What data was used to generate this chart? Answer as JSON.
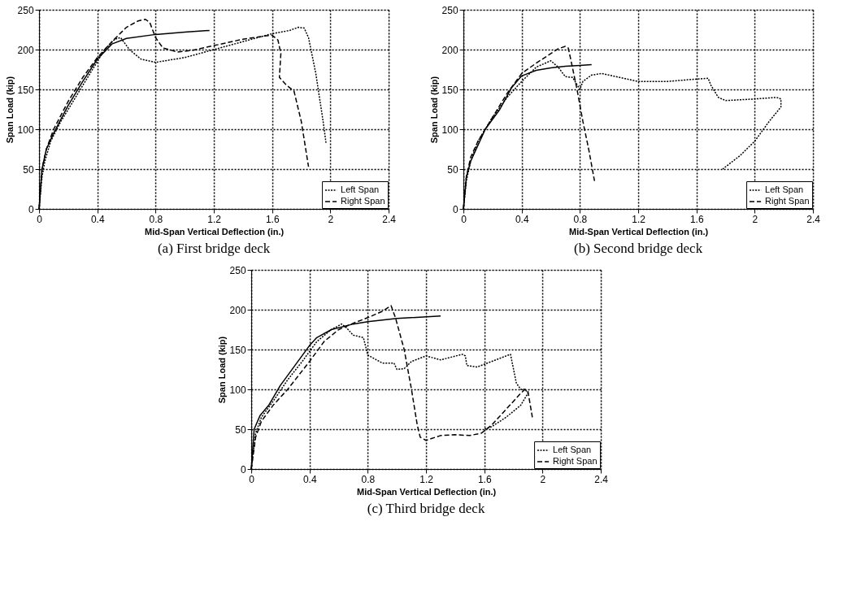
{
  "chart_data": [
    {
      "type": "line",
      "title": "(a) First bridge deck",
      "xlabel": "Mid-Span Vertical Deflection (in.)",
      "ylabel": "Span Load (kip)",
      "xlim": [
        0,
        2.4
      ],
      "ylim": [
        0,
        250
      ],
      "xticks": [
        0,
        0.4,
        0.8,
        1.2,
        1.6,
        2,
        2.4
      ],
      "yticks": [
        0,
        50,
        100,
        150,
        200,
        250
      ],
      "grid": true,
      "legend": "bottom right",
      "marker": "none",
      "series": [
        {
          "name": "Left Span",
          "color": "#000000",
          "line_style": "dotted",
          "x": [
            0,
            0.02,
            0.04,
            0.08,
            0.15,
            0.25,
            0.35,
            0.45,
            0.52,
            0.56,
            0.62,
            0.7,
            0.8,
            1.0,
            1.2,
            1.4,
            1.6,
            1.72,
            1.78,
            1.82,
            1.85,
            1.9,
            1.95,
            1.97
          ],
          "values": [
            0,
            40,
            60,
            85,
            110,
            140,
            170,
            200,
            213,
            215,
            200,
            188,
            184,
            190,
            200,
            210,
            220,
            224,
            228,
            227,
            215,
            170,
            110,
            83
          ]
        },
        {
          "name": "Right Span",
          "color": "#000000",
          "line_style": "dashed",
          "x": [
            0,
            0.02,
            0.05,
            0.1,
            0.2,
            0.3,
            0.4,
            0.5,
            0.6,
            0.68,
            0.73,
            0.76,
            0.8,
            0.85,
            0.95,
            1.05,
            1.2,
            1.4,
            1.55,
            1.6,
            1.64,
            1.66,
            1.65,
            1.7,
            1.75,
            1.8,
            1.85
          ],
          "values": [
            0,
            50,
            75,
            100,
            135,
            165,
            190,
            210,
            228,
            236,
            238,
            234,
            215,
            202,
            197,
            199,
            205,
            213,
            217,
            218,
            212,
            195,
            165,
            155,
            148,
            110,
            53
          ]
        },
        {
          "color": "#000000",
          "line_style": "solid",
          "x": [
            0,
            0.02,
            0.05,
            0.1,
            0.2,
            0.3,
            0.4,
            0.5,
            0.6,
            0.8,
            1.0,
            1.17
          ],
          "values": [
            0,
            50,
            75,
            95,
            130,
            160,
            188,
            207,
            214,
            219,
            222,
            224
          ]
        }
      ]
    },
    {
      "type": "line",
      "title": "(b) Second bridge deck",
      "xlabel": "Mid-Span Vertical Deflection (in.)",
      "ylabel": "Span Load (kip)",
      "xlim": [
        0,
        2.4
      ],
      "ylim": [
        0,
        250
      ],
      "xticks": [
        0,
        0.4,
        0.8,
        1.2,
        1.6,
        2,
        2.4
      ],
      "yticks": [
        0,
        50,
        100,
        150,
        200,
        250
      ],
      "grid": true,
      "legend": "bottom right",
      "marker": "none",
      "series": [
        {
          "name": "Left Span",
          "color": "#000000",
          "line_style": "dotted",
          "x": [
            0,
            0.02,
            0.05,
            0.1,
            0.2,
            0.3,
            0.4,
            0.5,
            0.6,
            0.65,
            0.7,
            0.75,
            0.8,
            0.82,
            0.88,
            0.95,
            1.1,
            1.2,
            1.4,
            1.6,
            1.68,
            1.7,
            1.75,
            1.8,
            1.9,
            2.0,
            2.15,
            2.18,
            2.18,
            2.1,
            2.0,
            1.9,
            1.78
          ],
          "values": [
            0,
            35,
            60,
            85,
            115,
            140,
            160,
            178,
            186,
            178,
            166,
            165,
            150,
            160,
            168,
            170,
            164,
            160,
            160,
            163,
            164,
            155,
            140,
            136,
            137,
            138,
            140,
            138,
            128,
            110,
            85,
            67,
            50
          ]
        },
        {
          "name": "Right Span",
          "color": "#000000",
          "line_style": "dashed",
          "x": [
            0,
            0.02,
            0.05,
            0.1,
            0.2,
            0.3,
            0.4,
            0.5,
            0.6,
            0.65,
            0.7,
            0.72,
            0.74,
            0.78,
            0.82,
            0.86,
            0.9
          ],
          "values": [
            0,
            40,
            65,
            85,
            115,
            145,
            170,
            183,
            195,
            201,
            204,
            202,
            185,
            150,
            110,
            75,
            35
          ]
        },
        {
          "color": "#000000",
          "line_style": "solid",
          "x": [
            0,
            0.02,
            0.05,
            0.1,
            0.15,
            0.25,
            0.33,
            0.4,
            0.5,
            0.6,
            0.7,
            0.8,
            0.88
          ],
          "values": [
            0,
            40,
            60,
            80,
            100,
            125,
            152,
            167,
            174,
            177,
            179,
            180,
            181
          ]
        }
      ]
    },
    {
      "type": "line",
      "title": "(c) Third bridge deck",
      "xlabel": "Mid-Span Vertical Deflection (in.)",
      "ylabel": "Span Load (kip)",
      "xlim": [
        0,
        2.4
      ],
      "ylim": [
        0,
        250
      ],
      "xticks": [
        0,
        0.4,
        0.8,
        1.2,
        1.6,
        2,
        2.4
      ],
      "yticks": [
        0,
        50,
        100,
        150,
        200,
        250
      ],
      "grid": true,
      "legend": "bottom right",
      "marker": "none",
      "series": [
        {
          "name": "Left Span",
          "color": "#000000",
          "line_style": "dotted",
          "x": [
            0,
            0.03,
            0.07,
            0.15,
            0.25,
            0.35,
            0.45,
            0.55,
            0.62,
            0.65,
            0.7,
            0.77,
            0.8,
            0.9,
            0.98,
            1.0,
            1.05,
            1.1,
            1.2,
            1.3,
            1.45,
            1.47,
            1.48,
            1.55,
            1.65,
            1.75,
            1.78,
            1.82,
            1.85,
            1.88,
            1.9,
            1.85,
            1.75,
            1.65,
            1.6
          ],
          "values": [
            0,
            45,
            65,
            85,
            112,
            135,
            160,
            175,
            182,
            178,
            168,
            165,
            143,
            133,
            133,
            125,
            126,
            135,
            142,
            137,
            144,
            142,
            130,
            128,
            135,
            142,
            144,
            108,
            100,
            100,
            95,
            80,
            65,
            53,
            50
          ]
        },
        {
          "name": "Right Span",
          "color": "#000000",
          "line_style": "dashed",
          "x": [
            0,
            0.03,
            0.07,
            0.15,
            0.25,
            0.4,
            0.5,
            0.6,
            0.7,
            0.8,
            0.9,
            0.96,
            0.99,
            1.05,
            1.1,
            1.14,
            1.16,
            1.2,
            1.3,
            1.4,
            1.5,
            1.58,
            1.65,
            1.75,
            1.85,
            1.88,
            1.9,
            1.93
          ],
          "values": [
            0,
            40,
            60,
            80,
            100,
            135,
            160,
            175,
            183,
            190,
            198,
            205,
            190,
            150,
            100,
            55,
            40,
            36,
            42,
            43,
            42,
            45,
            55,
            75,
            95,
            100,
            97,
            65
          ]
        },
        {
          "color": "#000000",
          "line_style": "solid",
          "x": [
            0,
            0.02,
            0.06,
            0.12,
            0.2,
            0.3,
            0.4,
            0.45,
            0.55,
            0.7,
            0.8,
            1.0,
            1.3
          ],
          "values": [
            0,
            50,
            67,
            80,
            105,
            130,
            155,
            165,
            175,
            182,
            185,
            189,
            192
          ]
        }
      ]
    }
  ]
}
